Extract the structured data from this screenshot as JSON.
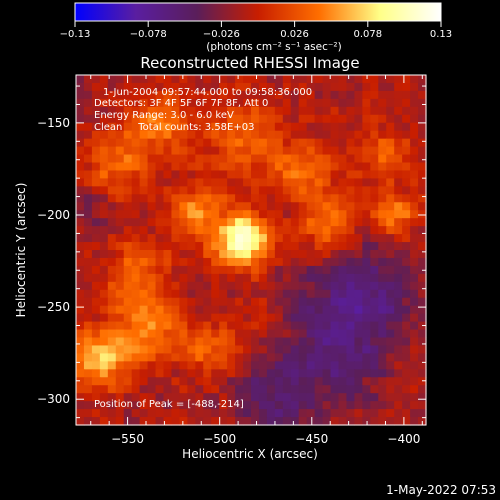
{
  "chart_data": {
    "type": "heatmap",
    "title": "Reconstructed RHESSI Image",
    "xlabel": "Heliocentric X (arcsec)",
    "ylabel": "Heliocentric Y (arcsec)",
    "xlim": [
      -578,
      -388
    ],
    "ylim": [
      -314,
      -124
    ],
    "x_ticks": [
      -550,
      -500,
      -450,
      -400
    ],
    "y_ticks": [
      -300,
      -250,
      -200,
      -150
    ],
    "x_tick_labels": [
      "−550",
      "−500",
      "−450",
      "−400"
    ],
    "y_tick_labels": [
      "−300",
      "−250",
      "−200",
      "−150"
    ],
    "colorbar": {
      "min": -0.13,
      "max": 0.13,
      "ticks": [
        -0.13,
        -0.078,
        -0.026,
        0.026,
        0.078,
        0.13
      ],
      "tick_labels": [
        "−0.13",
        "−0.078",
        "−0.026",
        "0.026",
        "0.078",
        "0.13"
      ],
      "unit_label": "(photons cm⁻² s⁻¹ asec⁻²)",
      "colors": [
        "#0000ff",
        "#5a1ea0",
        "#5a1e5a",
        "#c81e00",
        "#ff6e00",
        "#ffff88",
        "#ffffff"
      ]
    },
    "annotations": [
      "1-Jun-2004 09:57:44.000 to 09:58:36.000",
      "Detectors: 3F 4F 5F 6F 7F 8F, Att 0",
      "Energy Range: 3.0 - 6.0 keV",
      "Clean     Total counts: 3.58E+03"
    ],
    "peak_label": "Position of Peak = [-488,-214]",
    "peak": {
      "x": -488,
      "y": -214,
      "value": 0.13
    },
    "sources": [
      {
        "x": -488,
        "y": -214,
        "amp": 0.13,
        "sigma": 10
      },
      {
        "x": -513,
        "y": -198,
        "amp": 0.055,
        "sigma": 11
      },
      {
        "x": -565,
        "y": -278,
        "amp": 0.08,
        "sigma": 11
      },
      {
        "x": -540,
        "y": -260,
        "amp": 0.06,
        "sigma": 13
      },
      {
        "x": -545,
        "y": -230,
        "amp": 0.045,
        "sigma": 12
      },
      {
        "x": -555,
        "y": -172,
        "amp": 0.05,
        "sigma": 14
      },
      {
        "x": -532,
        "y": -150,
        "amp": 0.045,
        "sigma": 12
      },
      {
        "x": -488,
        "y": -158,
        "amp": 0.045,
        "sigma": 14
      },
      {
        "x": -455,
        "y": -175,
        "amp": 0.05,
        "sigma": 12
      },
      {
        "x": -440,
        "y": -205,
        "amp": 0.055,
        "sigma": 11
      },
      {
        "x": -404,
        "y": -200,
        "amp": 0.06,
        "sigma": 9
      },
      {
        "x": -412,
        "y": -165,
        "amp": 0.04,
        "sigma": 10
      },
      {
        "x": -507,
        "y": -272,
        "amp": 0.05,
        "sigma": 10
      },
      {
        "x": -478,
        "y": -258,
        "amp": 0.02,
        "sigma": 12
      },
      {
        "x": -440,
        "y": -270,
        "amp": -0.045,
        "sigma": 22
      },
      {
        "x": -420,
        "y": -240,
        "amp": -0.04,
        "sigma": 20
      },
      {
        "x": -470,
        "y": -300,
        "amp": -0.035,
        "sigma": 16
      },
      {
        "x": -570,
        "y": -198,
        "amp": -0.025,
        "sigma": 10
      }
    ],
    "background": -0.012
  },
  "footer": {
    "timestamp": "1-May-2022 07:53"
  }
}
